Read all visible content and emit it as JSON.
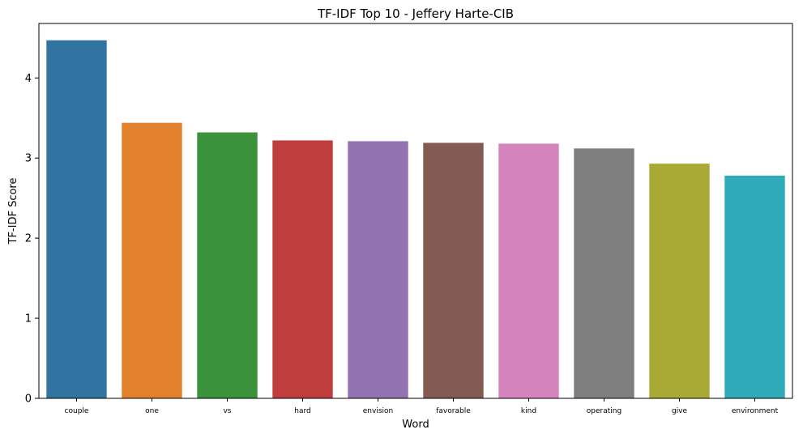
{
  "chart_data": {
    "type": "bar",
    "title": "TF-IDF Top 10 - Jeffery Harte-CIB",
    "xlabel": "Word",
    "ylabel": "TF-IDF Score",
    "categories": [
      "couple",
      "one",
      "vs",
      "hard",
      "envision",
      "favorable",
      "kind",
      "operating",
      "give",
      "environment"
    ],
    "values": [
      4.47,
      3.44,
      3.32,
      3.22,
      3.21,
      3.19,
      3.18,
      3.12,
      2.93,
      2.78
    ],
    "colors": [
      "#3274a1",
      "#e1812c",
      "#3a923a",
      "#c03d3e",
      "#9372b2",
      "#845b53",
      "#d684bd",
      "#7f7f7f",
      "#a9aa35",
      "#2eaab8"
    ],
    "ylim": [
      0,
      4.68
    ],
    "yticks": [
      0,
      1,
      2,
      3,
      4
    ],
    "grid": false,
    "legend": false
  }
}
